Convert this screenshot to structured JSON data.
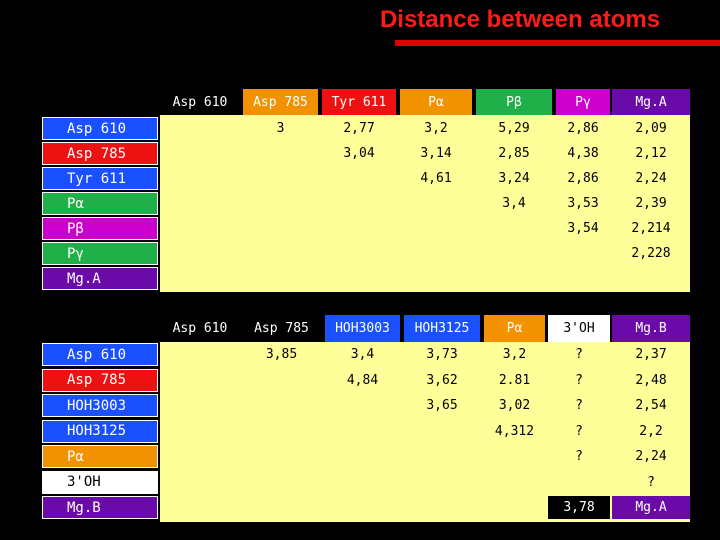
{
  "title": "Distance between  atoms",
  "table1": {
    "header": [
      "Asp 610",
      "Asp 785",
      "Tyr 611",
      "Pα",
      "Pβ",
      "Pγ",
      "Mg.A"
    ],
    "rows": [
      {
        "label": "Asp 610",
        "cells": [
          null,
          "3",
          "2,77",
          "3,2",
          "5,29",
          "2,86",
          "2,09"
        ]
      },
      {
        "label": "Asp 785",
        "cells": [
          null,
          null,
          "3,04",
          "3,14",
          "2,85",
          "4,38",
          "2,12"
        ]
      },
      {
        "label": "Tyr 611",
        "cells": [
          null,
          null,
          null,
          "4,61",
          "3,24",
          "2,86",
          "2,24"
        ]
      },
      {
        "label": "Pα",
        "cells": [
          null,
          null,
          null,
          null,
          "3,4",
          "3,53",
          "2,39"
        ]
      },
      {
        "label": "Pβ",
        "cells": [
          null,
          null,
          null,
          null,
          null,
          "3,54",
          "2,214"
        ]
      },
      {
        "label": "Pγ",
        "cells": [
          null,
          null,
          null,
          null,
          null,
          null,
          "2,228"
        ]
      },
      {
        "label": "Mg.A",
        "cells": [
          null,
          null,
          null,
          null,
          null,
          null,
          null
        ]
      }
    ]
  },
  "table2": {
    "header": [
      "Asp 610",
      "Asp 785",
      "HOH3003",
      "HOH3125",
      "Pα",
      "3'OH",
      "Mg.B"
    ],
    "rows": [
      {
        "label": "Asp 610",
        "cells": [
          null,
          "3,85",
          "3,4",
          "3,73",
          "3,2",
          "?",
          "2,37"
        ]
      },
      {
        "label": "Asp 785",
        "cells": [
          null,
          null,
          "4,84",
          "3,62",
          "2.81",
          "?",
          "2,48"
        ]
      },
      {
        "label": "HOH3003",
        "cells": [
          null,
          null,
          null,
          "3,65",
          "3,02",
          "?",
          "2,54"
        ]
      },
      {
        "label": "HOH3125",
        "cells": [
          null,
          null,
          null,
          null,
          "4,312",
          "?",
          "2,2"
        ]
      },
      {
        "label": "Pα",
        "cells": [
          null,
          null,
          null,
          null,
          null,
          "?",
          "2,24"
        ]
      },
      {
        "label": "3'OH",
        "cells": [
          null,
          null,
          null,
          null,
          null,
          null,
          "?"
        ]
      },
      {
        "label": "Mg.B",
        "cells": [
          null,
          null,
          null,
          null,
          null,
          "3,78",
          "Mg.A"
        ]
      }
    ]
  }
}
